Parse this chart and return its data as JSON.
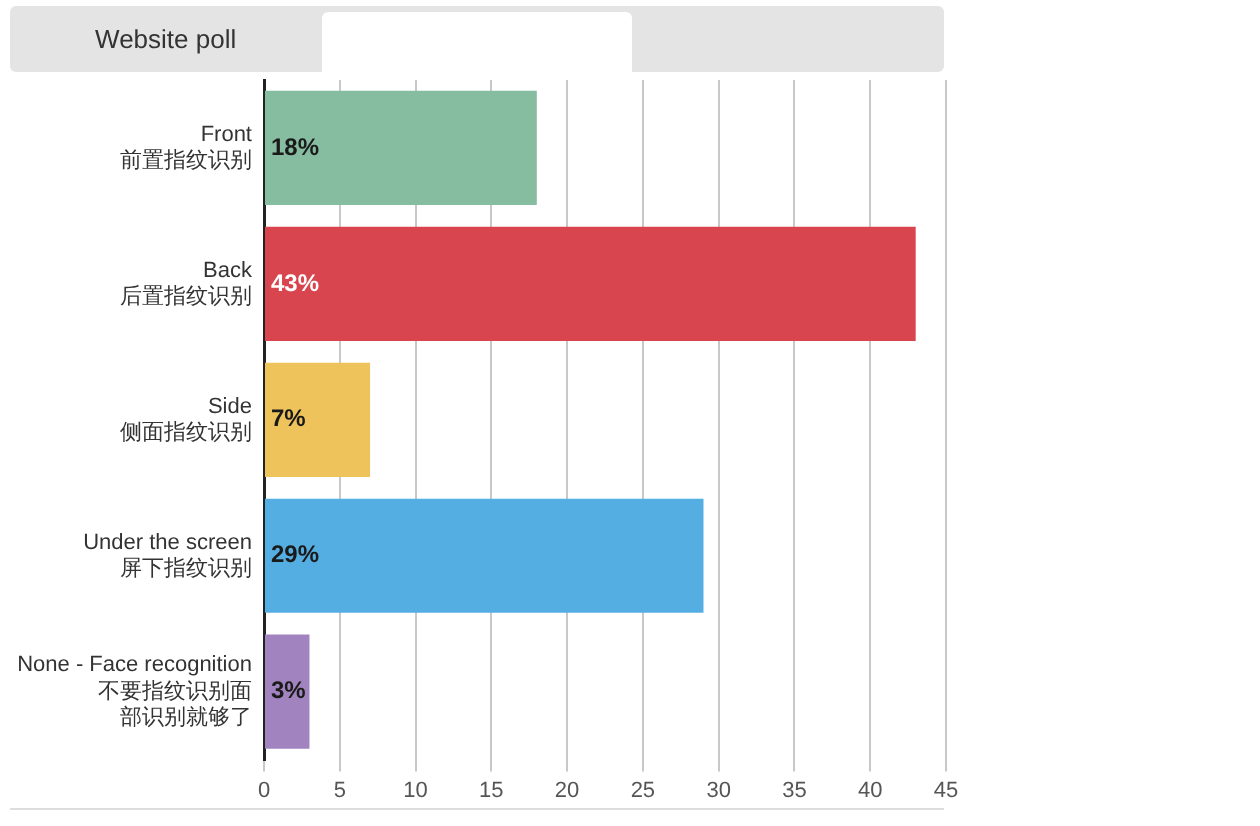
{
  "chart_data": {
    "type": "bar",
    "orientation": "horizontal",
    "categories": [
      "Front\n前置指纹识别",
      "Back\n后置指纹识别",
      "Side\n侧面指纹识别",
      "Under the screen\n屏下指纹识别",
      "None - Face recognition\n不要指纹识别面部识别就够了"
    ],
    "values": [
      18,
      43,
      7,
      29,
      3
    ],
    "colors": [
      "#86bc9f",
      "#d9454e",
      "#efc35c",
      "#55aee2",
      "#a184bf"
    ],
    "value_labels": [
      "18%",
      "43%",
      "7%",
      "29%",
      "3%"
    ],
    "xlim": [
      0,
      45
    ],
    "xticks": [
      0,
      5,
      10,
      15,
      20,
      25,
      30,
      35,
      40,
      45
    ],
    "grid": "x",
    "legend": false,
    "annotations": [
      "Website poll"
    ]
  }
}
